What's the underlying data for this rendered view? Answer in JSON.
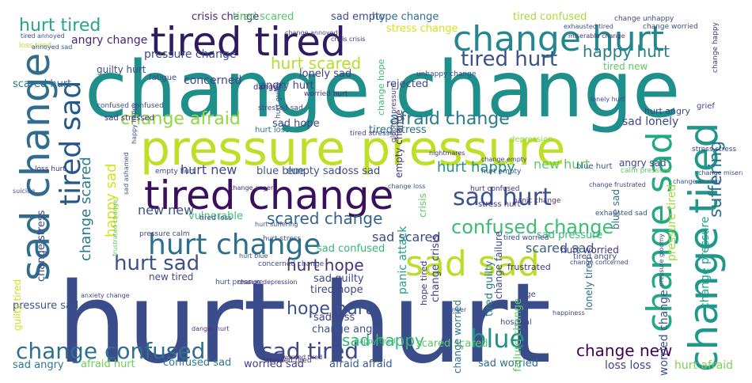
{
  "words": [
    {
      "text": "hurt hurt",
      "color": "#3b4c8b"
    },
    {
      "text": "change change",
      "color": "#1f8f8b"
    },
    {
      "text": "pressure pressure",
      "color": "#bddf26"
    },
    {
      "text": "tired change",
      "color": "#3a0f5c"
    },
    {
      "text": "tired tired",
      "color": "#2f1c5f"
    },
    {
      "text": "change hurt",
      "color": "#23888e"
    },
    {
      "text": "sad change",
      "color": "#2f6c8e"
    },
    {
      "text": "sad sad",
      "color": "#b8de29"
    },
    {
      "text": "change tired",
      "color": "#1f978b"
    },
    {
      "text": "change sad",
      "color": "#22a884"
    },
    {
      "text": "hurt change",
      "color": "#2e6e8e"
    },
    {
      "text": "sad hurt",
      "color": "#3b528b"
    },
    {
      "text": "tired sad",
      "color": "#25588e"
    },
    {
      "text": "change confused",
      "color": "#2e6f8e"
    },
    {
      "text": "sad tired",
      "color": "#3e4a89"
    },
    {
      "text": "confused change",
      "color": "#3dbc74"
    },
    {
      "text": "hurt sad",
      "color": "#3c508b"
    },
    {
      "text": "blue",
      "color": "#21918c"
    },
    {
      "text": "hurt tired",
      "color": "#22a884"
    },
    {
      "text": "tired hurt",
      "color": "#3b518b"
    },
    {
      "text": "change afraid",
      "color": "#8fd744"
    },
    {
      "text": "afraid change",
      "color": "#297b8e"
    },
    {
      "text": "happy hurt",
      "color": "#277f8e"
    },
    {
      "text": "scared change",
      "color": "#32648e"
    },
    {
      "text": "hope hurt",
      "color": "#3b528b"
    },
    {
      "text": "hurt hope",
      "color": "#46337e"
    },
    {
      "text": "change new",
      "color": "#440154"
    },
    {
      "text": "sad happy",
      "color": "#35b779"
    },
    {
      "text": "hurt scared",
      "color": "#b5de2b"
    },
    {
      "text": "hurt happy",
      "color": "#21918c"
    },
    {
      "text": "suffering",
      "color": "#2c728e"
    },
    {
      "text": "happy sad",
      "color": "#d5e21a"
    },
    {
      "text": "change scared",
      "color": "#2a788e"
    },
    {
      "text": "sad scared",
      "color": "#3e4c8a"
    },
    {
      "text": "new hurt",
      "color": "#5ec962"
    },
    {
      "text": "pressure tired",
      "color": "#a0da39"
    },
    {
      "text": "worried change",
      "color": "#3a548c"
    },
    {
      "text": "new new",
      "color": "#3b528b"
    },
    {
      "text": "hurt new",
      "color": "#3f4788"
    },
    {
      "text": "scared sad",
      "color": "#34608d"
    },
    {
      "text": "change pressure",
      "color": "#1fa188"
    },
    {
      "text": "angry change",
      "color": "#482576"
    },
    {
      "text": "pressure change",
      "color": "#3e4989"
    },
    {
      "text": "concerned",
      "color": "#3f4889"
    },
    {
      "text": "crisis change",
      "color": "#482878"
    },
    {
      "text": "sad empty",
      "color": "#3e4a89"
    },
    {
      "text": "hope change",
      "color": "#2d718e"
    },
    {
      "text": "tired confused",
      "color": "#a5db36"
    },
    {
      "text": "tired scared",
      "color": "#54c568"
    },
    {
      "text": "stress change",
      "color": "#d8e219"
    },
    {
      "text": "rejected",
      "color": "#3e4989"
    },
    {
      "text": "lonely sad",
      "color": "#433e85"
    },
    {
      "text": "angry hurt",
      "color": "#404688"
    },
    {
      "text": "sad hope",
      "color": "#3f4788"
    },
    {
      "text": "blue blue",
      "color": "#3b528b"
    },
    {
      "text": "empty sad",
      "color": "#3b528b"
    },
    {
      "text": "loss sad",
      "color": "#404588"
    },
    {
      "text": "sad lonely",
      "color": "#3f4889"
    },
    {
      "text": "sad pressure",
      "color": "#35b779"
    },
    {
      "text": "sad guilty",
      "color": "#3f4788"
    },
    {
      "text": "sad loss",
      "color": "#414487"
    },
    {
      "text": "tired hope",
      "color": "#414487"
    },
    {
      "text": "sad confused",
      "color": "#35b779"
    },
    {
      "text": "scared scared",
      "color": "#5ec962"
    },
    {
      "text": "confused sad",
      "color": "#2a788e"
    },
    {
      "text": "afraid hurt",
      "color": "#6ece58"
    },
    {
      "text": "worried sad",
      "color": "#433e85"
    },
    {
      "text": "afraid afraid",
      "color": "#38598c"
    },
    {
      "text": "sad worried",
      "color": "#2f6c8e"
    },
    {
      "text": "loss loss",
      "color": "#3f4788"
    },
    {
      "text": "hurt afraid",
      "color": "#7ad151"
    },
    {
      "text": "sad angry",
      "color": "#2a788e"
    },
    {
      "text": "change angry",
      "color": "#3b528b"
    },
    {
      "text": "crisis",
      "color": "#5ec962"
    },
    {
      "text": "vulnerable",
      "color": "#3dbc74"
    },
    {
      "text": "fatigue",
      "color": "#3e4989"
    },
    {
      "text": "danger",
      "color": "#482576"
    },
    {
      "text": "grief",
      "color": "#3f4889"
    },
    {
      "text": "depression",
      "color": "#90d743"
    },
    {
      "text": "suicide",
      "color": "#3b528b"
    },
    {
      "text": "rage",
      "color": "#3e4989"
    },
    {
      "text": "hospital",
      "color": "#404688"
    },
    {
      "text": "frustrated",
      "color": "#46337e"
    },
    {
      "text": "pressure sad",
      "color": "#3b528b"
    },
    {
      "text": "guilty tired",
      "color": "#d0e11c"
    },
    {
      "text": "change stress",
      "color": "#3e4989"
    },
    {
      "text": "scared hurt",
      "color": "#2c728e"
    },
    {
      "text": "guilty hurt",
      "color": "#3e4c8a"
    },
    {
      "text": "loss tired",
      "color": "#b5de2b"
    },
    {
      "text": "hurt loss",
      "color": "#2a788e"
    },
    {
      "text": "blue sad",
      "color": "#2f6c8e"
    },
    {
      "text": "angry sad",
      "color": "#3e4989"
    },
    {
      "text": "hurt angry",
      "color": "#3e4989"
    },
    {
      "text": "stressed sad",
      "color": "#3f4788"
    },
    {
      "text": "tired stress",
      "color": "#2f6c8e"
    },
    {
      "text": "loss hurt",
      "color": "#46327e"
    },
    {
      "text": "panic attack",
      "color": "#1fa088"
    },
    {
      "text": "tired guilty",
      "color": "#2a788e"
    },
    {
      "text": "failure change",
      "color": "#5ec962"
    },
    {
      "text": "change failure",
      "color": "#3e4989"
    },
    {
      "text": "lonely tired",
      "color": "#2f6c8e"
    },
    {
      "text": "hurt worried",
      "color": "#46327e"
    },
    {
      "text": "pressure calm",
      "color": "#414487"
    },
    {
      "text": "new tired",
      "color": "#3e4989"
    },
    {
      "text": "tired angry",
      "color": "#3e4c8a"
    },
    {
      "text": "happy tired",
      "color": "#3dbc74"
    },
    {
      "text": "hurt pressure",
      "color": "#3b528b"
    },
    {
      "text": "hurt confused",
      "color": "#46327e"
    },
    {
      "text": "tired loss",
      "color": "#3b528b"
    },
    {
      "text": "hurt empty",
      "color": "#3b528b"
    },
    {
      "text": "empty hurt",
      "color": "#3e4989"
    },
    {
      "text": "worried hurt",
      "color": "#46327e"
    },
    {
      "text": "gloomy pressure",
      "color": "#433e85"
    },
    {
      "text": "unhappy change",
      "color": "#3e4c8a"
    },
    {
      "text": "change unhappy",
      "color": "#3e4989"
    },
    {
      "text": "change happy",
      "color": "#46327e"
    },
    {
      "text": "tired new",
      "color": "#5ec962"
    },
    {
      "text": "hurt stress",
      "color": "#3b528b"
    },
    {
      "text": "tired worried",
      "color": "#3e4989"
    },
    {
      "text": "change crisis",
      "color": "#414487"
    },
    {
      "text": "change worried",
      "color": "#2c728e"
    },
    {
      "text": "hope tired",
      "color": "#46327e"
    },
    {
      "text": "change hope",
      "color": "#3dbc74"
    },
    {
      "text": "lonely hurt",
      "color": "#3e4989"
    },
    {
      "text": "blue hurt",
      "color": "#3b528b"
    },
    {
      "text": "stress stress",
      "color": "#3e4989"
    },
    {
      "text": "empty change",
      "color": "#46327e"
    },
    {
      "text": "tired stressed",
      "color": "#3e4989"
    },
    {
      "text": "sad stressed",
      "color": "#46327e"
    },
    {
      "text": "hurt guilty",
      "color": "#3b528b"
    },
    {
      "text": "confused confused",
      "color": "#3b528b"
    },
    {
      "text": "stressed tired",
      "color": "#46327e"
    },
    {
      "text": "change annoyed",
      "color": "#3e4989"
    },
    {
      "text": "change worried",
      "color": "#3b528b"
    },
    {
      "text": "worried tired",
      "color": "#46327e"
    },
    {
      "text": "exhausted tired",
      "color": "#3b528b"
    },
    {
      "text": "happiness",
      "color": "#3e4989"
    },
    {
      "text": "stress hurt",
      "color": "#46327e"
    },
    {
      "text": "anger",
      "color": "#3b528b"
    },
    {
      "text": "calm pressure",
      "color": "#5ec962"
    },
    {
      "text": "panic change",
      "color": "#46327e"
    },
    {
      "text": "sad ashamed",
      "color": "#3b528b"
    },
    {
      "text": "concerned change",
      "color": "#3e4989"
    },
    {
      "text": "crisis crisis",
      "color": "#46327e"
    },
    {
      "text": "tired annoyed",
      "color": "#3b528b"
    },
    {
      "text": "anxiety change",
      "color": "#3e4989"
    },
    {
      "text": "tired unhappy",
      "color": "#46327e"
    },
    {
      "text": "change loss",
      "color": "#3b528b"
    },
    {
      "text": "nightmares",
      "color": "#46327e"
    },
    {
      "text": "change empty",
      "color": "#3e4989"
    },
    {
      "text": "hurt suffering",
      "color": "#3b528b"
    },
    {
      "text": "change depression",
      "color": "#46327e"
    },
    {
      "text": "frustrated change",
      "color": "#5ec962"
    },
    {
      "text": "change concerned",
      "color": "#3e4989"
    },
    {
      "text": "change anxiety",
      "color": "#3b528b"
    },
    {
      "text": "miserable change",
      "color": "#46327e"
    },
    {
      "text": "happy happy",
      "color": "#3e4989"
    },
    {
      "text": "annoyed sad",
      "color": "#3b528b"
    },
    {
      "text": "danger hurt",
      "color": "#46327e"
    },
    {
      "text": "change frustrated",
      "color": "#3e4989"
    },
    {
      "text": "exhausted sad",
      "color": "#3b528b"
    },
    {
      "text": "change anger",
      "color": "#46327e"
    },
    {
      "text": "pressure gloomy",
      "color": "#3e4989"
    },
    {
      "text": "hurt blue",
      "color": "#3b528b"
    },
    {
      "text": "sad exhausted",
      "color": "#46327e"
    },
    {
      "text": "change miserable",
      "color": "#3e4989"
    }
  ]
}
